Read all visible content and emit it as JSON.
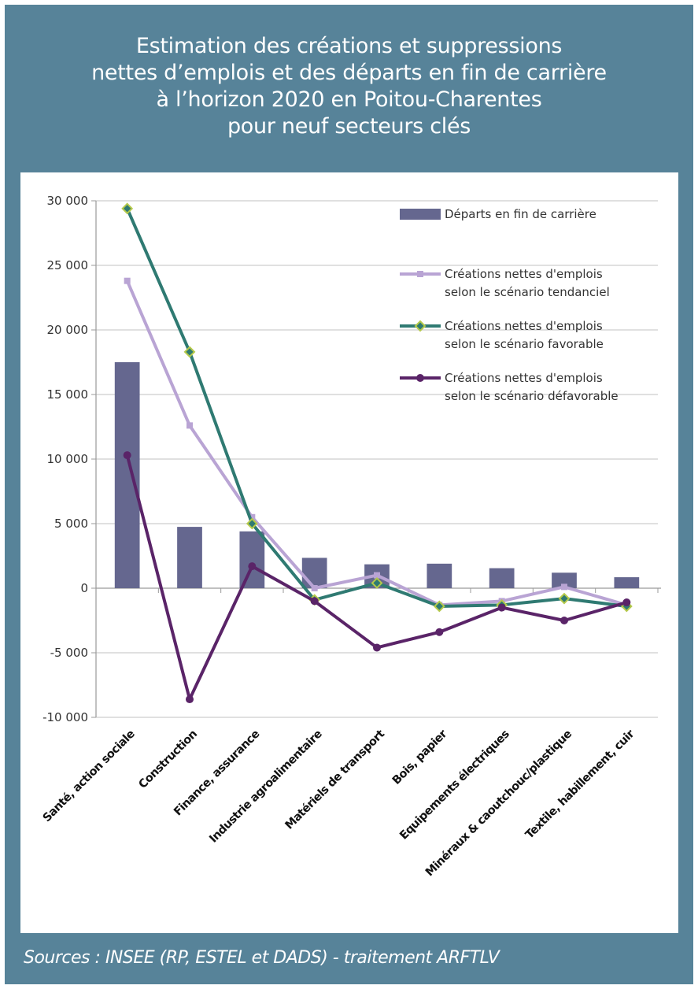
{
  "frame": {
    "background": "#578399",
    "title_lines": [
      "Estimation des créations et suppressions",
      "nettes d’emplois et des départs en fin de carrière",
      "à l’horizon 2020 en Poitou-Charentes",
      "pour neuf secteurs clés"
    ],
    "source": "Sources : INSEE (RP, ESTEL et DADS) - traitement ARFTLV"
  },
  "chart_data": {
    "type": "bar+line",
    "title": "Estimation des créations et suppressions nettes d’emplois et des départs en fin de carrière à l’horizon 2020 en Poitou-Charentes pour neuf secteurs clés",
    "xlabel": "",
    "ylabel": "",
    "ylim": [
      -10000,
      30000
    ],
    "yticks": [
      30000,
      25000,
      20000,
      15000,
      10000,
      5000,
      0,
      -5000,
      -10000
    ],
    "ytick_labels": [
      "30 000",
      "25 000",
      "20 000",
      "15 000",
      "10 000",
      "5 000",
      "0",
      "-5 000",
      "-10 000"
    ],
    "grid": true,
    "legend_position": "top-right",
    "categories": [
      "Santé, action sociale",
      "Construction",
      "Finance, assurance",
      "Industrie agroalimentaire",
      "Matériels de transport",
      "Bois, papier",
      "Equipements électriques",
      "Minéraux & caoutchouc/plastique",
      "Textile, habillement, cuir"
    ],
    "series": [
      {
        "name": "Départs en fin de carrière",
        "legend_lines": [
          "Départs en fin de carrière"
        ],
        "kind": "bar",
        "color": "#65678f",
        "values": [
          17500,
          4750,
          4400,
          2350,
          1850,
          1900,
          1550,
          1200,
          850
        ]
      },
      {
        "name": "Créations nettes d'emplois selon le scénario tendanciel",
        "legend_lines": [
          "Créations nettes d'emplois",
          "selon le scénario tendanciel"
        ],
        "kind": "line",
        "marker": "square",
        "color": "#b9a4d4",
        "marker_color": "#b9a4d4",
        "values": [
          23800,
          12600,
          5500,
          0,
          1000,
          -1300,
          -1000,
          100,
          -1300
        ]
      },
      {
        "name": "Créations nettes d'emplois selon le scénario favorable",
        "legend_lines": [
          "Créations nettes d'emplois",
          "selon le scénario favorable"
        ],
        "kind": "line",
        "marker": "diamond",
        "color": "#2f7a72",
        "marker_color": "#b5c94a",
        "values": [
          29400,
          18300,
          5000,
          -900,
          400,
          -1400,
          -1300,
          -800,
          -1400
        ]
      },
      {
        "name": "Créations nettes d'emplois selon le scénario défavorable",
        "legend_lines": [
          "Créations nettes d'emplois",
          "selon le scénario défavorable"
        ],
        "kind": "line",
        "marker": "circle",
        "color": "#5a2468",
        "marker_color": "#5a2468",
        "values": [
          10300,
          -8600,
          1700,
          -1000,
          -4600,
          -3400,
          -1500,
          -2500,
          -1100
        ]
      }
    ]
  }
}
